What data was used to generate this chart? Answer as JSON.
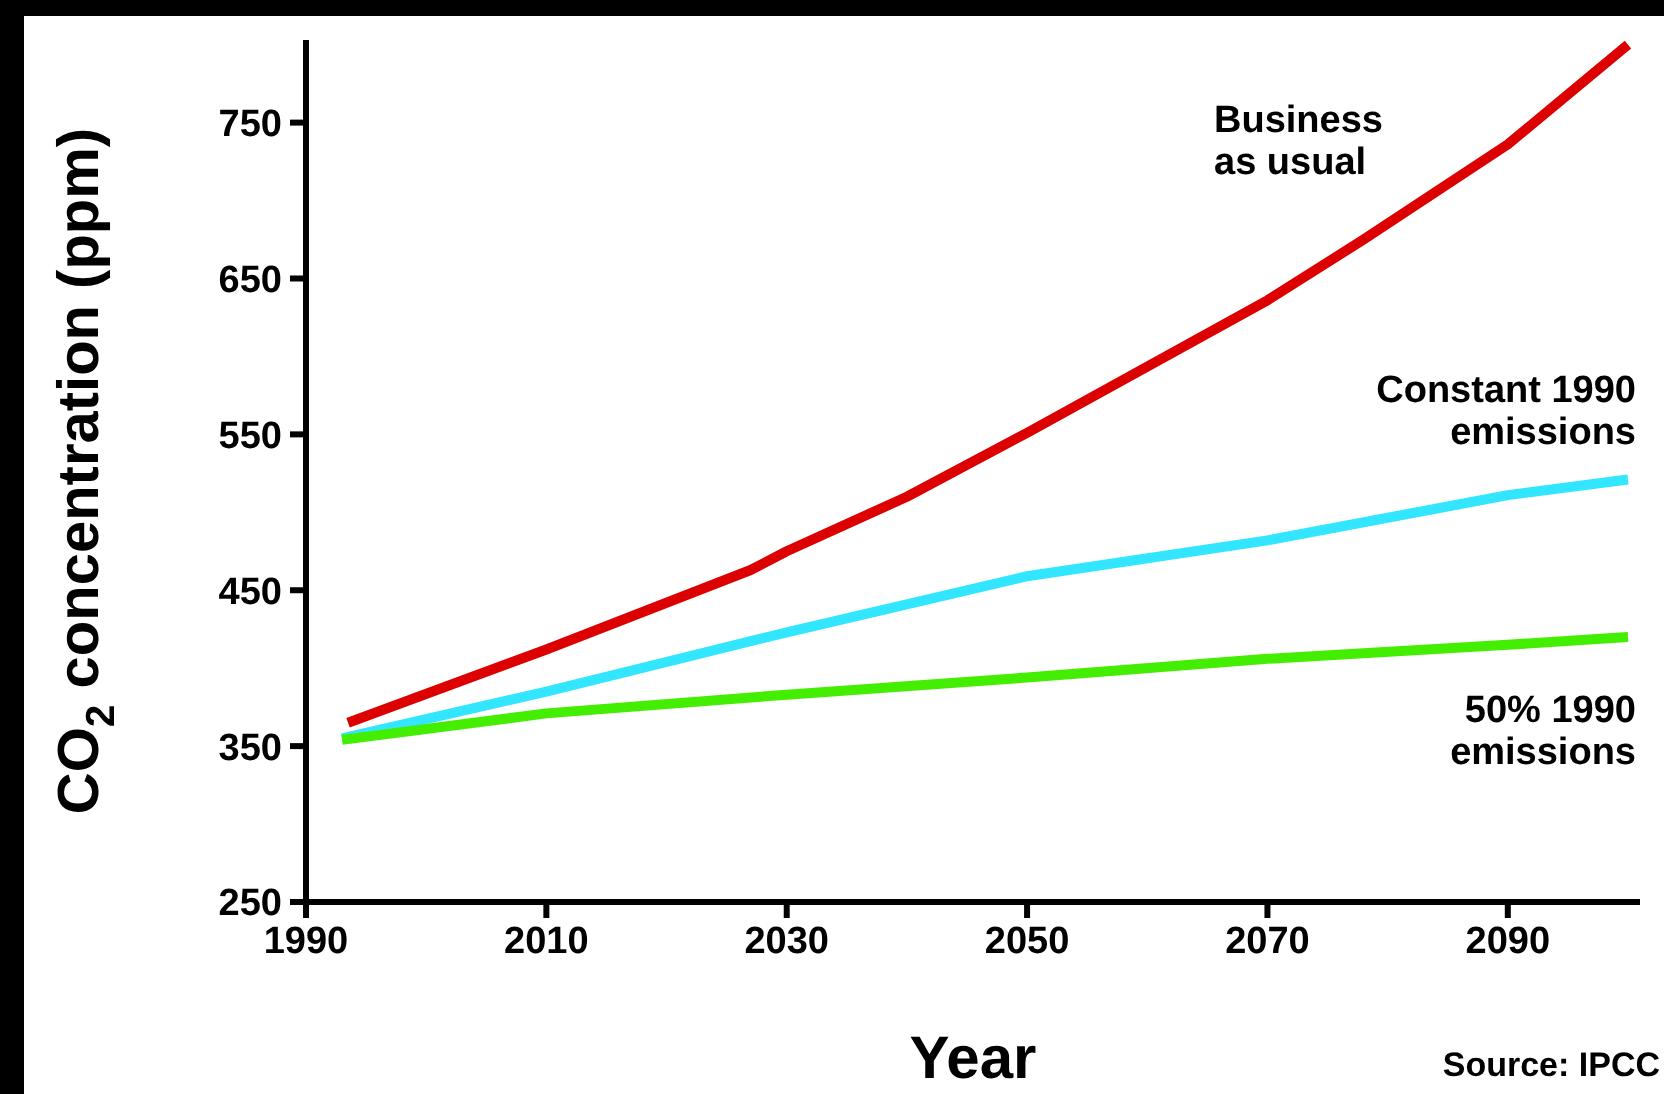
{
  "chart_data": {
    "type": "line",
    "xlabel": "Year",
    "ylabel": "CO$_{2}$ concentration (ppm)",
    "annotations": [
      "Source: IPCC"
    ],
    "xlim": [
      1990,
      2101
    ],
    "xticks": [
      1990,
      2010,
      2030,
      2050,
      2070,
      2090
    ],
    "ylim": [
      250,
      803
    ],
    "yticks": [
      250,
      350,
      450,
      550,
      650,
      750
    ],
    "grid": false,
    "legend": false,
    "marker": "none",
    "line_style": "solid",
    "series": [
      {
        "name": "Business\nas usual",
        "color": "#dd0000",
        "x": [
          1993.5,
          2010,
          2027,
          2030,
          2040,
          2050,
          2070,
          2078,
          2090,
          2100
        ],
        "values": [
          365,
          412,
          463,
          475,
          510,
          551,
          636,
          675,
          736,
          800
        ]
      },
      {
        "name": "Constant 1990\nemissions",
        "color": "#33e6ff",
        "x": [
          1993,
          2010,
          2030,
          2050,
          2070,
          2090,
          2100
        ],
        "values": [
          355,
          385,
          423,
          459,
          482,
          511,
          521
        ]
      },
      {
        "name": "50% 1990\nemissions",
        "color": "#44ee00",
        "x": [
          1993,
          2010,
          2030,
          2050,
          2070,
          2090,
          2100
        ],
        "values": [
          354,
          371,
          383,
          394,
          406,
          415,
          420
        ]
      }
    ]
  }
}
